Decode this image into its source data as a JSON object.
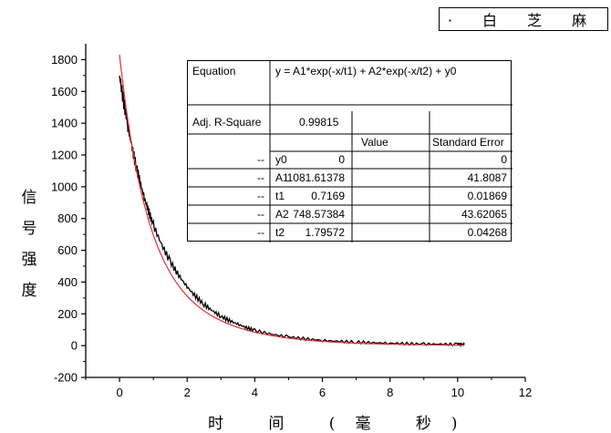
{
  "legend": {
    "text": "· 白 芝 麻"
  },
  "chart_data": {
    "type": "line",
    "title": "",
    "xlabel": "时 间 (毫 秒)",
    "ylabel": "信 号 强 度",
    "xlim": [
      -1,
      12
    ],
    "ylim": [
      -200,
      1900
    ],
    "xticks": [
      0,
      2,
      4,
      6,
      8,
      10,
      12
    ],
    "yticks": [
      -200,
      0,
      200,
      400,
      600,
      800,
      1000,
      1200,
      1400,
      1600,
      1800
    ],
    "grid": false,
    "series": [
      {
        "name": "白芝麻",
        "style": "data",
        "color": "#000000",
        "x": [
          0,
          0.25,
          0.5,
          0.75,
          1,
          1.5,
          2,
          2.5,
          3,
          3.5,
          4,
          5,
          6,
          7,
          8,
          9,
          10,
          10.2
        ],
        "y": [
          1700,
          1380,
          1120,
          920,
          760,
          530,
          370,
          260,
          185,
          135,
          95,
          55,
          33,
          22,
          15,
          10,
          8,
          8
        ]
      },
      {
        "name": "fit",
        "style": "fit",
        "color": "#e03030",
        "equation": "y = A1*exp(-x/t1) + A2*exp(-x/t2) + y0",
        "params": {
          "y0": 0,
          "A1": 1081.61378,
          "t1": 0.7169,
          "A2": 748.57384,
          "t2": 1.79572
        },
        "x_range": [
          0,
          10.2
        ]
      }
    ],
    "fit_table": {
      "equation_label": "Equation",
      "equation": "y = A1*exp(-x/t1) + A2*exp(-x/t2) + y0",
      "adj_r_square_label": "Adj. R-Square",
      "adj_r_square": "0.99815",
      "col_value": "Value",
      "col_error": "Standard Error",
      "rows": [
        {
          "dash": "--",
          "param": "y0",
          "value": "0",
          "error": "0"
        },
        {
          "dash": "--",
          "param": "A1",
          "value": "1081.61378",
          "error": "41.8087"
        },
        {
          "dash": "--",
          "param": "t1",
          "value": "0.7169",
          "error": "0.01869"
        },
        {
          "dash": "--",
          "param": "A2",
          "value": "748.57384",
          "error": "43.62065"
        },
        {
          "dash": "--",
          "param": "t2",
          "value": "1.79572",
          "error": "0.04268"
        }
      ]
    }
  }
}
